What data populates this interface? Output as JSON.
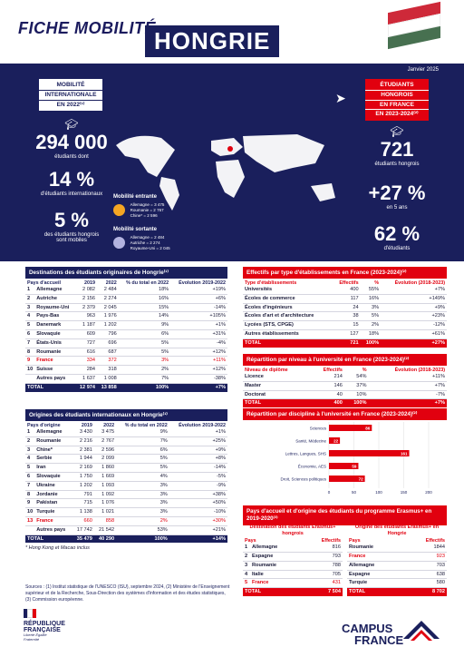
{
  "header": {
    "title": "FICHE MOBILITÉ",
    "country": "HONGRIE",
    "date": "Janvier 2025"
  },
  "colors": {
    "navy": "#1a1f5c",
    "red": "#e1000f",
    "orange": "#f5a623",
    "lavender": "#b3b3e0",
    "flag_red": "#ce2939",
    "flag_green": "#477050"
  },
  "left_panel": {
    "head": [
      "MOBILITÉ",
      "INTERNATIONALE",
      "EN 2022⁽¹⁾"
    ],
    "students_value": "294 000",
    "students_label": "étudiants dont",
    "intl_pct": "14 %",
    "intl_label": "d'étudiants internationaux",
    "mobile_pct": "5 %",
    "mobile_label_1": "des étudiants hongrois",
    "mobile_label_2": "sont mobiles"
  },
  "right_panel": {
    "head": [
      "ÉTUDIANTS",
      "HONGROIS",
      "EN FRANCE",
      "EN 2023-2024⁽²⁾"
    ],
    "students_value": "721",
    "students_label": "étudiants hongrois",
    "growth": "+27 %",
    "growth_label": "en 5 ans",
    "doctor_pct": "62 %",
    "doctor_label": "d'étudiants"
  },
  "map_legend": {
    "in_title": "Mobilité entrante",
    "in_items": [
      "Allemagne = 3 475",
      "Roumanie = 2 767",
      "Chine* = 2 596"
    ],
    "out_title": "Mobilité sortante",
    "out_items": [
      "Allemagne = 2 484",
      "Autriche = 2 274",
      "Royaume-Uni = 2 045"
    ]
  },
  "dest_table": {
    "title": "Destinations des étudiants originaires de Hongrie⁽¹⁾",
    "headers": [
      "Pays d'accueil",
      "2019",
      "2022",
      "% du total en 2022",
      "Évolution 2019-2022"
    ],
    "rows": [
      [
        "1",
        "Allemagne",
        "2 082",
        "2 484",
        "18%",
        "+19%"
      ],
      [
        "2",
        "Autriche",
        "2 156",
        "2 274",
        "16%",
        "+6%"
      ],
      [
        "3",
        "Royaume-Uni",
        "2 379",
        "2 045",
        "15%",
        "-14%"
      ],
      [
        "4",
        "Pays-Bas",
        "963",
        "1 976",
        "14%",
        "+105%"
      ],
      [
        "5",
        "Danemark",
        "1 187",
        "1 202",
        "9%",
        "+1%"
      ],
      [
        "6",
        "Slovaquie",
        "609",
        "796",
        "6%",
        "+31%"
      ],
      [
        "7",
        "États-Unis",
        "727",
        "696",
        "5%",
        "-4%"
      ],
      [
        "8",
        "Roumanie",
        "616",
        "687",
        "5%",
        "+12%"
      ],
      [
        "9",
        "France",
        "334",
        "372",
        "3%",
        "+11%"
      ],
      [
        "10",
        "Suisse",
        "284",
        "318",
        "2%",
        "+12%"
      ],
      [
        "",
        "Autres pays",
        "1 637",
        "1 008",
        "7%",
        "-38%"
      ]
    ],
    "total": [
      "TOTAL",
      "12 974",
      "13 858",
      "100%",
      "+7%"
    ]
  },
  "orig_table": {
    "title": "Origines des étudiants internationaux en Hongrie⁽¹⁾",
    "headers": [
      "Pays d'origine",
      "2019",
      "2022",
      "% du total en 2022",
      "Évolution 2019-2022"
    ],
    "rows": [
      [
        "1",
        "Allemagne",
        "3 430",
        "3 475",
        "9%",
        "+1%"
      ],
      [
        "2",
        "Roumanie",
        "2 216",
        "2 767",
        "7%",
        "+25%"
      ],
      [
        "3",
        "Chine*",
        "2 381",
        "2 596",
        "6%",
        "+9%"
      ],
      [
        "4",
        "Serbie",
        "1 944",
        "2 099",
        "5%",
        "+8%"
      ],
      [
        "5",
        "Iran",
        "2 169",
        "1 860",
        "5%",
        "-14%"
      ],
      [
        "6",
        "Slovaquie",
        "1 750",
        "1 669",
        "4%",
        "-5%"
      ],
      [
        "7",
        "Ukraine",
        "1 202",
        "1 093",
        "3%",
        "-9%"
      ],
      [
        "8",
        "Jordanie",
        "791",
        "1 092",
        "3%",
        "+38%"
      ],
      [
        "9",
        "Pakistan",
        "715",
        "1 076",
        "3%",
        "+50%"
      ],
      [
        "10",
        "Turquie",
        "1 138",
        "1 021",
        "3%",
        "-10%"
      ],
      [
        "13",
        "France",
        "660",
        "858",
        "2%",
        "+30%"
      ],
      [
        "",
        "Autres pays",
        "17 742",
        "21 542",
        "53%",
        "+21%"
      ]
    ],
    "total": [
      "TOTAL",
      "35 479",
      "40 290",
      "100%",
      "+14%"
    ],
    "footnote": "* Hong Kong et Macao inclus"
  },
  "etab_table": {
    "title": "Effectifs par type d'établissements en France (2023-2024)⁽²⁾",
    "headers": [
      "Type d'établissements",
      "Effectifs",
      "%",
      "Évolution (2018-2023)"
    ],
    "rows": [
      [
        "Universités",
        "400",
        "55%",
        "+7%"
      ],
      [
        "Écoles de commerce",
        "117",
        "16%",
        "+149%"
      ],
      [
        "Écoles d'ingénieurs",
        "24",
        "3%",
        "+9%"
      ],
      [
        "Écoles d'art et d'architecture",
        "38",
        "5%",
        "+23%"
      ],
      [
        "Lycées (STS, CPGE)",
        "15",
        "2%",
        "-12%"
      ],
      [
        "Autres établissements",
        "127",
        "18%",
        "+61%"
      ]
    ],
    "total": [
      "TOTAL",
      "721",
      "100%",
      "+27%"
    ]
  },
  "niveau_table": {
    "title": "Répartition par niveau à l'université en France (2023-2024)⁽²⁾",
    "headers": [
      "Niveau de diplôme",
      "Effectifs",
      "%",
      "Évolution (2018-2023)"
    ],
    "rows": [
      [
        "Licence",
        "214",
        "54%",
        "+11%"
      ],
      [
        "Master",
        "146",
        "37%",
        "+7%"
      ],
      [
        "Doctorat",
        "40",
        "10%",
        "-7%"
      ]
    ],
    "total": [
      "TOTAL",
      "400",
      "100%",
      "+7%"
    ]
  },
  "chart_data": {
    "type": "bar",
    "title": "Répartition par discipline à l'université en France (2023-2024)⁽²⁾",
    "categories": [
      "Sciences",
      "Santé, Médecine",
      "Lettres, Langues, SHS",
      "Économie, AES",
      "Droit, Sciences politiques"
    ],
    "values": [
      86,
      22,
      161,
      59,
      72
    ],
    "xlim": [
      0,
      200
    ],
    "xticks": [
      "0",
      "50",
      "100",
      "150",
      "200"
    ]
  },
  "erasmus": {
    "title": "Pays d'accueil et d'origine des étudiants du programme Erasmus+ en 2019-2020⁽³⁾",
    "dest_title": "Destination des étudiants Erasmus+ hongrois",
    "orig_title": "Origine des étudiants Erasmus+ en Hongrie",
    "headers": [
      "Pays",
      "Effectifs"
    ],
    "dest_rows": [
      [
        "1",
        "Allemagne",
        "816"
      ],
      [
        "2",
        "Espagne",
        "793"
      ],
      [
        "3",
        "Roumanie",
        "788"
      ],
      [
        "4",
        "Italie",
        "705"
      ],
      [
        "5",
        "France",
        "431"
      ]
    ],
    "orig_rows": [
      [
        "Roumanie",
        "1844"
      ],
      [
        "France",
        "923"
      ],
      [
        "Allemagne",
        "703"
      ],
      [
        "Espagne",
        "638"
      ],
      [
        "Turquie",
        "580"
      ]
    ],
    "dest_total": [
      "TOTAL",
      "7 504"
    ],
    "orig_total": [
      "TOTAL",
      "8 702"
    ]
  },
  "sources": {
    "line1": "Sources : (1) Institut statistique de l'UNESCO (ISU), septembre 2024, (2) Ministère de l'Enseignement",
    "line2": "supérieur et de la Recherche, Sous-Direction des systèmes d'information et des études statistiques,",
    "line3": "(3) Commission européenne."
  },
  "footer": {
    "rf1": "RÉPUBLIQUE",
    "rf2": "FRANÇAISE",
    "motto": "Liberté Égalité Fraternité",
    "cf1": "CAMPUS",
    "cf2": "FRANCE"
  }
}
